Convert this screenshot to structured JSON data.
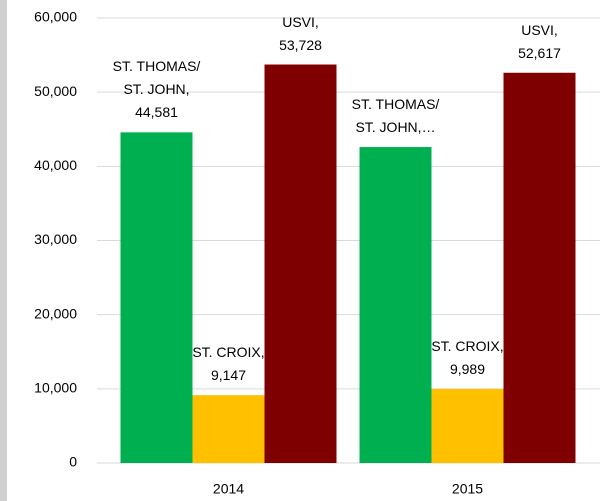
{
  "chart_data": {
    "type": "bar",
    "categories": [
      "2014",
      "2015"
    ],
    "series": [
      {
        "name": "ST. THOMAS/ ST. JOHN,",
        "color": "#00b050",
        "values": [
          44581,
          42600
        ],
        "value_labels": [
          "44,581",
          "…"
        ]
      },
      {
        "name": "ST. CROIX,",
        "color": "#ffc000",
        "values": [
          9147,
          9989
        ],
        "value_labels": [
          "9,147",
          "9,989"
        ]
      },
      {
        "name": "USVI,",
        "color": "#7f0000",
        "values": [
          53728,
          52617
        ],
        "value_labels": [
          "53,728",
          "52,617"
        ]
      }
    ],
    "ylim": [
      0,
      60000
    ],
    "yticks": [
      0,
      {
        "value": 10000,
        "label": "10,000"
      },
      {
        "value": 20000,
        "label": "20,000"
      },
      {
        "value": 30000,
        "label": "30,000"
      },
      {
        "value": 40000,
        "label": "40,000"
      },
      {
        "value": 50000,
        "label": "50,000"
      },
      {
        "value": 60000,
        "label": "60,000"
      }
    ],
    "grid": true
  }
}
